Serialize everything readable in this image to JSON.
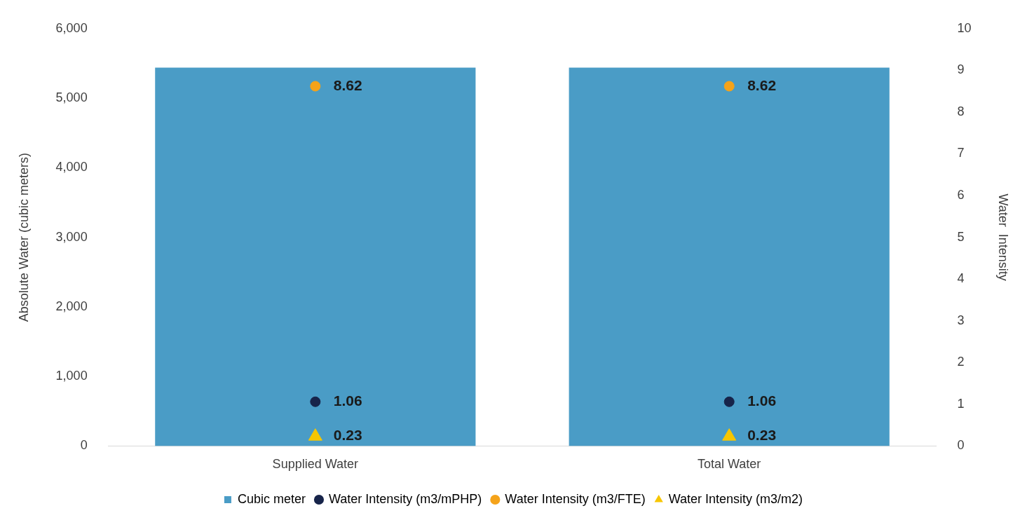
{
  "chart_data": {
    "type": "bar",
    "ylabel": "Absolute Water (cubic meters)",
    "y2label": "Water  Intensity",
    "categories": [
      "Supplied Water",
      "Total Water"
    ],
    "series": [
      {
        "name": "Cubic meter",
        "color": "#4a9cc6",
        "values": [
          5440,
          5440
        ]
      },
      {
        "name": "Water Intensity (m3/mPHP)",
        "type": "scatter",
        "axis": "y2",
        "marker": "circle",
        "color": "#17244a",
        "values": [
          1.06,
          1.06
        ],
        "value_labels": [
          "1.06",
          "1.06"
        ]
      },
      {
        "name": "Water Intensity (m3/FTE)",
        "type": "scatter",
        "axis": "y2",
        "marker": "circle",
        "color": "#f5a31a",
        "values": [
          8.62,
          8.62
        ],
        "value_labels": [
          "8.62",
          "8.62"
        ]
      },
      {
        "name": "Water Intensity (m3/m2)",
        "type": "scatter",
        "axis": "y2",
        "marker": "triangle",
        "color": "#f7c600",
        "values": [
          0.23,
          0.23
        ],
        "value_labels": [
          "0.23",
          "0.23"
        ]
      }
    ],
    "ylim": [
      0,
      6000
    ],
    "yticks": [
      0,
      {
        "value": 1000,
        "label": "1,000"
      },
      {
        "value": 2000,
        "label": "2,000"
      },
      {
        "value": 3000,
        "label": "3,000"
      },
      {
        "value": 4000,
        "label": "4,000"
      },
      {
        "value": 5000,
        "label": "5,000"
      },
      {
        "value": 6000,
        "label": "6,000"
      }
    ],
    "y2lim": [
      0,
      10
    ],
    "y2ticks": [
      0,
      1,
      2,
      3,
      4,
      5,
      6,
      7,
      8,
      9,
      10
    ],
    "grid": false,
    "legend": "bottom"
  }
}
